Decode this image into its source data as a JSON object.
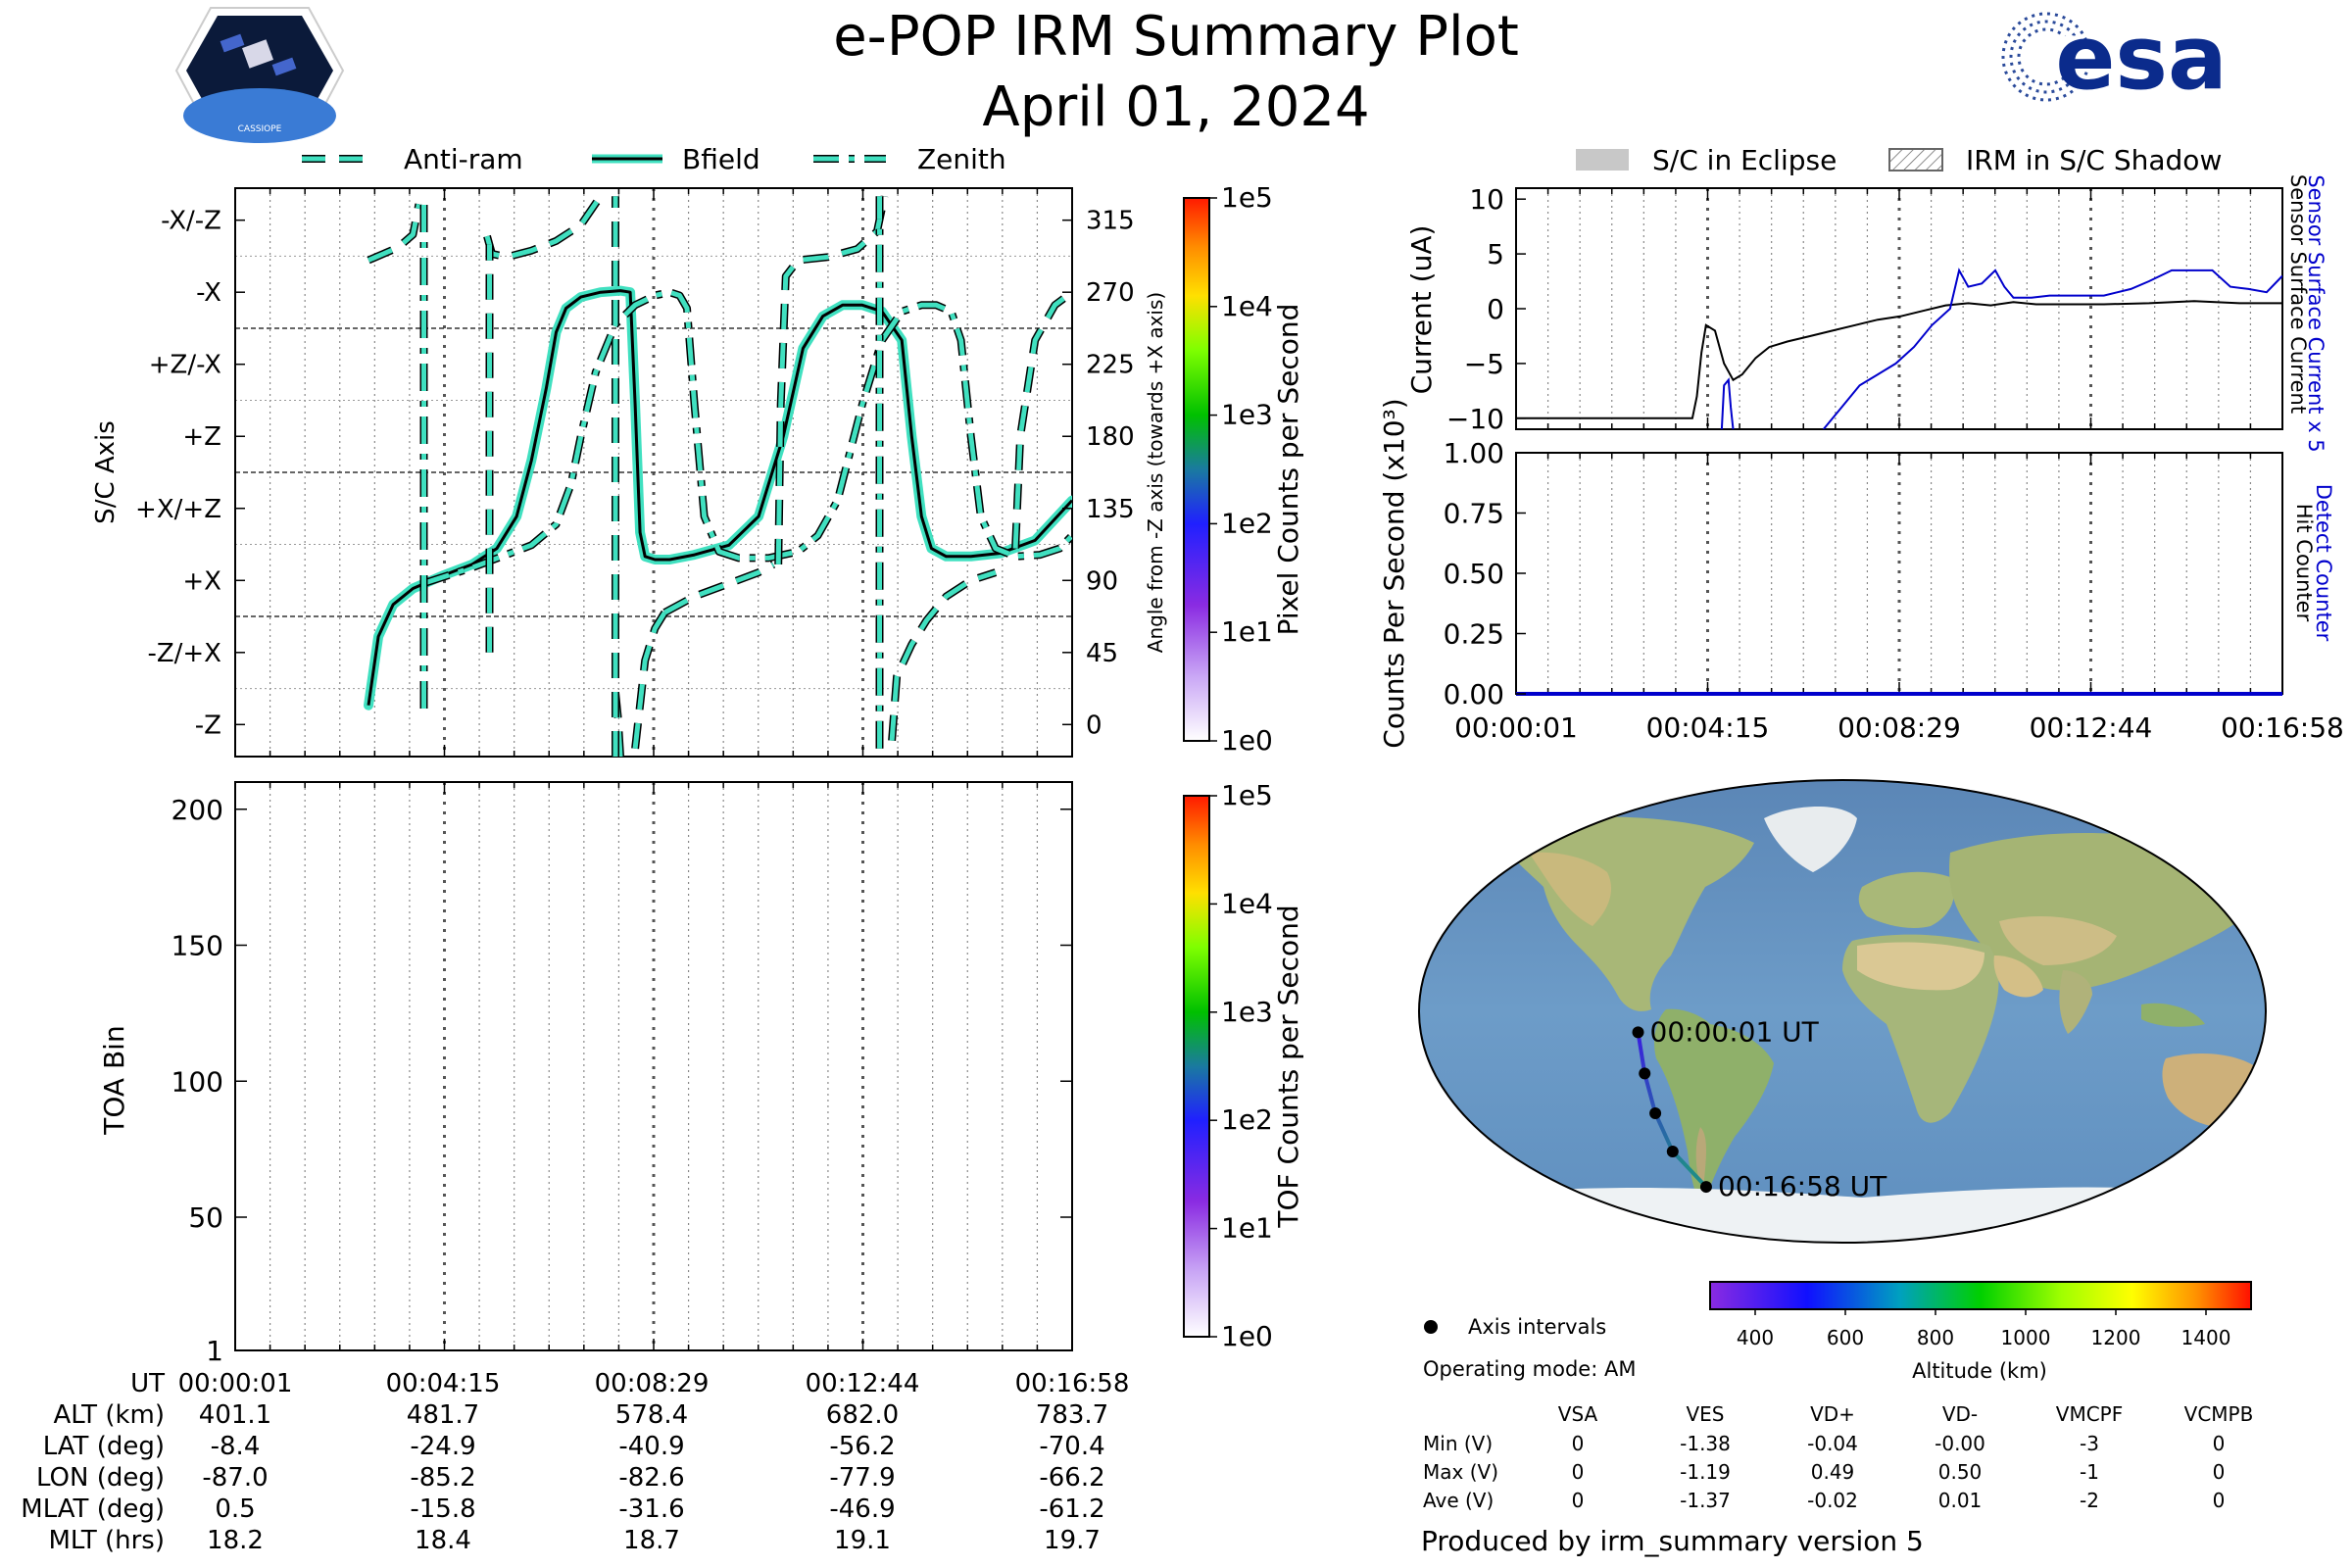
{
  "header": {
    "title": "e-POP IRM Summary Plot",
    "date": "April 01, 2024",
    "logo_left": "CASSIOPE",
    "logo_right": "esa"
  },
  "colors": {
    "trace_fill": "#40e0c0",
    "trace_edge": "#000000",
    "sensor_current": "#0000cc",
    "surface_current": "#000000",
    "orbit_track_start": "#3a1ee0",
    "orbit_track_end": "#1f8a8a"
  },
  "legend_top": [
    "Anti-ram",
    "Bfield",
    "Zenith"
  ],
  "legend_right": [
    "S/C in Eclipse",
    "IRM in S/C Shadow"
  ],
  "time_ticks": [
    "00:00:01",
    "00:04:15",
    "00:08:29",
    "00:12:44",
    "00:16:58"
  ],
  "chart_data": [
    {
      "type": "line",
      "id": "attitude",
      "ylabel": "S/C Axis",
      "y2label": "Angle from -Z axis (towards +X axis)",
      "yticks": [
        "-X/-Z",
        "-X",
        "+Z/-X",
        "+Z",
        "+X/+Z",
        "+X",
        "-Z/+X",
        "-Z"
      ],
      "y2ticks": [
        315,
        270,
        225,
        180,
        135,
        90,
        45,
        0
      ],
      "ylim": [
        -20,
        335
      ],
      "x_minutes": [
        0,
        16.95
      ],
      "series": [
        {
          "name": "Bfield",
          "x": [
            2.7,
            2.9,
            3.2,
            3.6,
            4.2,
            4.8,
            5.3,
            5.7,
            6.0,
            6.3,
            6.5,
            6.7,
            7.0,
            7.4,
            7.8,
            8.0,
            8.1,
            8.2,
            8.3,
            8.5,
            8.8,
            9.3,
            10.0,
            10.6,
            11.1,
            11.5,
            11.9,
            12.3,
            12.7,
            13.1,
            13.5,
            13.7,
            13.9,
            14.1,
            14.4,
            14.9,
            15.5,
            16.2,
            16.95
          ],
          "y": [
            12,
            55,
            75,
            85,
            93,
            100,
            110,
            130,
            165,
            210,
            245,
            260,
            267,
            270,
            271,
            270,
            200,
            120,
            105,
            103,
            103,
            106,
            112,
            130,
            180,
            235,
            255,
            262,
            262,
            258,
            240,
            180,
            130,
            110,
            105,
            105,
            107,
            115,
            140
          ]
        },
        {
          "name": "Zenith",
          "x": [
            3.8,
            4.2,
            4.8,
            5.4,
            6.0,
            6.5,
            6.8,
            7.0,
            7.3,
            7.7,
            8.1,
            8.5,
            8.8,
            9.0,
            9.15,
            9.3,
            9.5,
            9.8,
            10.2,
            10.8,
            11.4,
            11.8,
            12.2,
            12.7,
            13.1,
            13.5,
            13.9,
            14.2,
            14.5,
            14.7,
            14.9,
            15.1,
            15.4,
            15.8,
            16.3,
            16.7,
            16.95
          ],
          "y": [
            88,
            92,
            98,
            105,
            112,
            125,
            150,
            180,
            220,
            250,
            262,
            268,
            270,
            268,
            260,
            200,
            130,
            108,
            104,
            104,
            108,
            118,
            140,
            200,
            240,
            258,
            262,
            262,
            258,
            240,
            180,
            130,
            110,
            105,
            106,
            110,
            118
          ]
        },
        {
          "name": "Anti-ram",
          "segments": [
            {
              "x": [
                2.7,
                3.0,
                3.3,
                3.6,
                3.72
              ],
              "y": [
                290,
                294,
                298,
                306,
                325
              ]
            },
            {
              "x": [
                5.1,
                5.2,
                5.5,
                6.0,
                6.5,
                7.0,
                7.4
              ],
              "y": [
                305,
                294,
                292,
                296,
                302,
                312,
                330
              ]
            },
            {
              "x": [
                7.7,
                7.75,
                7.8
              ],
              "y": [
                20,
                5,
                -20
              ]
            },
            {
              "x": [
                8.1,
                8.3,
                8.5,
                8.7
              ],
              "y": [
                -15,
                40,
                60,
                70
              ]
            },
            {
              "x": [
                8.7,
                9.3,
                10.0,
                10.6,
                10.9
              ],
              "y": [
                70,
                80,
                88,
                95,
                100
              ]
            },
            {
              "x": [
                11.0,
                11.05,
                11.15,
                11.4,
                12.0,
                12.6,
                13.0,
                13.15
              ],
              "y": [
                100,
                200,
                280,
                290,
                292,
                297,
                308,
                330
              ]
            },
            {
              "x": [
                13.3,
                13.4,
                13.7,
                14.0,
                14.4,
                14.9,
                15.4
              ],
              "y": [
                -10,
                30,
                50,
                65,
                80,
                90,
                95
              ]
            },
            {
              "x": [
                15.8,
                15.9,
                16.2,
                16.6,
                16.95
              ],
              "y": [
                110,
                180,
                240,
                262,
                270
              ]
            }
          ]
        }
      ],
      "vertical_spikes": [
        {
          "series": "Zenith",
          "x": 3.82,
          "y": [
            10,
            330
          ]
        },
        {
          "series": "Anti-ram",
          "x": 5.15,
          "y": [
            45,
            300
          ]
        },
        {
          "series": "Anti-ram",
          "x": 7.7,
          "y": [
            -20,
            330
          ]
        },
        {
          "series": "Zenith",
          "x": 13.05,
          "y": [
            -15,
            330
          ]
        }
      ]
    },
    {
      "type": "heatmap",
      "id": "pixel-colorbar",
      "label": "Pixel Counts per Second",
      "ticks": [
        "1e5",
        "1e4",
        "1e3",
        "1e2",
        "1e1",
        "1e0"
      ]
    },
    {
      "type": "heatmap",
      "id": "toa",
      "ylabel": "TOA Bin",
      "yticks": [
        200,
        150,
        100,
        50,
        1
      ],
      "ylim": [
        1,
        210
      ],
      "values": []
    },
    {
      "type": "heatmap",
      "id": "tof-colorbar",
      "label": "TOF Counts per Second",
      "ticks": [
        "1e5",
        "1e4",
        "1e3",
        "1e2",
        "1e1",
        "1e0"
      ]
    },
    {
      "type": "line",
      "id": "current",
      "ylabel": "Current (uA)",
      "y2label_top": "Sensor Surface Current x 5",
      "y2label_bottom": "Sensor Surface Current",
      "yticks": [
        10,
        5,
        0,
        -5,
        -10
      ],
      "ylim": [
        -11,
        11
      ],
      "series": [
        {
          "name": "Sensor Surface Current",
          "x": [
            0,
            3.9,
            4.0,
            4.1,
            4.2,
            4.4,
            4.6,
            4.8,
            5.0,
            5.3,
            5.6,
            6.0,
            6.5,
            7.0,
            7.5,
            8.0,
            8.5,
            9.0,
            9.5,
            10.0,
            10.5,
            11.0,
            11.5,
            12.0,
            13.0,
            14.0,
            15.0,
            16.0,
            16.95
          ],
          "y": [
            -10,
            -10,
            -8,
            -4,
            -1.5,
            -2,
            -5,
            -6.5,
            -6,
            -4.5,
            -3.5,
            -3,
            -2.5,
            -2,
            -1.5,
            -1,
            -0.7,
            -0.2,
            0.3,
            0.5,
            0.3,
            0.6,
            0.4,
            0.4,
            0.4,
            0.5,
            0.7,
            0.5,
            0.5
          ]
        },
        {
          "name": "Sensor Surface Current x 5",
          "x": [
            4.55,
            4.6,
            4.7,
            4.75,
            4.8
          ],
          "y": [
            -11,
            -7,
            -6.5,
            -9,
            -11
          ]
        },
        {
          "name": "Sensor Surface Current x 5 (rise)",
          "x": [
            6.8,
            7.2,
            7.6,
            8.0,
            8.4,
            8.8,
            9.2,
            9.6,
            9.8,
            10.0,
            10.3,
            10.6,
            10.8,
            11.0,
            11.4,
            11.8,
            12.0,
            12.4,
            13.0,
            13.6,
            14.0,
            14.5,
            15.0,
            15.4,
            15.8,
            16.2,
            16.6,
            16.95
          ],
          "y": [
            -11,
            -9,
            -7,
            -6,
            -5,
            -3.5,
            -1.5,
            0,
            3.5,
            2,
            2.3,
            3.5,
            2,
            1,
            1,
            1.2,
            1.2,
            1.2,
            1.2,
            1.8,
            2.5,
            3.5,
            3.5,
            3.5,
            2,
            1.8,
            1.5,
            3
          ]
        }
      ]
    },
    {
      "type": "line",
      "id": "counts",
      "ylabel": "Counts Per Second (x10³)",
      "y2label_top": "Detect Counter",
      "y2label_bottom": "Hit Counter",
      "yticks": [
        "1.00",
        "0.75",
        "0.50",
        "0.25",
        "0.00"
      ],
      "ylim": [
        0,
        1
      ],
      "series": [
        {
          "name": "Detect Counter",
          "x": [
            0,
            16.95
          ],
          "y": [
            0,
            0
          ]
        }
      ]
    },
    {
      "type": "scatter",
      "id": "orbit-map",
      "points": [
        {
          "label": "00:00:01 UT",
          "lon": -87.0,
          "lat": -8.4
        },
        {
          "label": "",
          "lon": -85.2,
          "lat": -24.9
        },
        {
          "label": "",
          "lon": -82.6,
          "lat": -40.9
        },
        {
          "label": "",
          "lon": -77.9,
          "lat": -56.2
        },
        {
          "label": "00:16:58 UT",
          "lon": -66.2,
          "lat": -70.4
        }
      ],
      "colorbar_label": "Altitude (km)",
      "colorbar_ticks": [
        400,
        600,
        800,
        1000,
        1200,
        1400
      ],
      "legend": "Axis intervals",
      "operating_mode": "Operating mode: AM"
    }
  ],
  "orbit_table": {
    "header": "UT",
    "rows": [
      {
        "label": "ALT (km)",
        "values": [
          "401.1",
          "481.7",
          "578.4",
          "682.0",
          "783.7"
        ]
      },
      {
        "label": "LAT (deg)",
        "values": [
          "-8.4",
          "-24.9",
          "-40.9",
          "-56.2",
          "-70.4"
        ]
      },
      {
        "label": "LON (deg)",
        "values": [
          "-87.0",
          "-85.2",
          "-82.6",
          "-77.9",
          "-66.2"
        ]
      },
      {
        "label": "MLAT (deg)",
        "values": [
          "0.5",
          "-15.8",
          "-31.6",
          "-46.9",
          "-61.2"
        ]
      },
      {
        "label": "MLT (hrs)",
        "values": [
          "18.2",
          "18.4",
          "18.7",
          "19.1",
          "19.7"
        ]
      }
    ]
  },
  "voltage_table": {
    "columns": [
      "VSA",
      "VES",
      "VD+",
      "VD-",
      "VMCPF",
      "VCMPB"
    ],
    "rows": [
      {
        "label": "Min (V)",
        "values": [
          "0",
          "-1.38",
          "-0.04",
          "-0.00",
          "-3",
          "0"
        ]
      },
      {
        "label": "Max (V)",
        "values": [
          "0",
          "-1.19",
          "0.49",
          "0.50",
          "-1",
          "0"
        ]
      },
      {
        "label": "Ave (V)",
        "values": [
          "0",
          "-1.37",
          "-0.02",
          "0.01",
          "-2",
          "0"
        ]
      }
    ]
  },
  "footer": "Produced by irm_summary version 5"
}
